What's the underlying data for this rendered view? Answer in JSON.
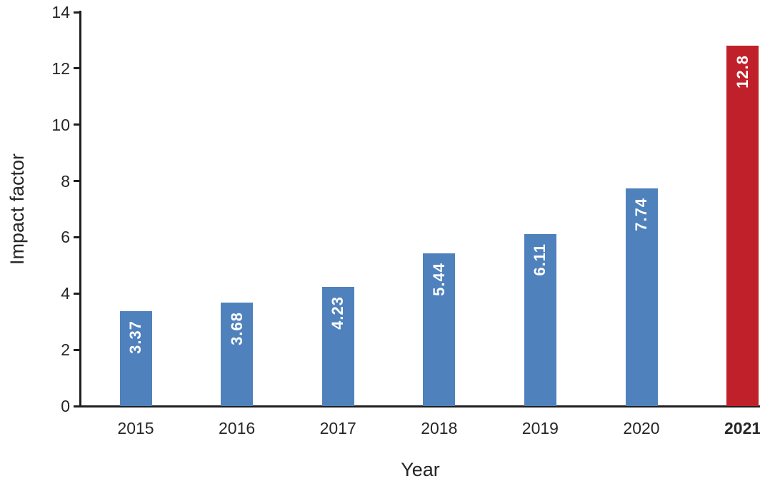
{
  "chart_data": {
    "type": "bar",
    "title": "",
    "xlabel": "Year",
    "ylabel": "Impact factor",
    "categories": [
      "2015",
      "2016",
      "2017",
      "2018",
      "2019",
      "2020",
      "2021"
    ],
    "values": [
      3.37,
      3.68,
      4.23,
      5.44,
      6.11,
      7.74,
      12.8
    ],
    "value_labels": [
      "3.37",
      "3.68",
      "4.23",
      "5.44",
      "6.11",
      "7.74",
      "12.8"
    ],
    "ylim": [
      0,
      14
    ],
    "yticks": [
      0,
      2,
      4,
      6,
      8,
      10,
      12,
      14
    ],
    "grid": false,
    "legend": "none",
    "bar_colors": [
      "#4F81BD",
      "#4F81BD",
      "#4F81BD",
      "#4F81BD",
      "#4F81BD",
      "#4F81BD",
      "#C0202A"
    ],
    "bold_categories": [
      "2021"
    ],
    "colors": {
      "bar_default": "#4F81BD",
      "bar_highlight": "#C0202A",
      "axis": "#1F1F1F",
      "text": "#262626",
      "value_label_text": "#FFFFFF"
    }
  }
}
